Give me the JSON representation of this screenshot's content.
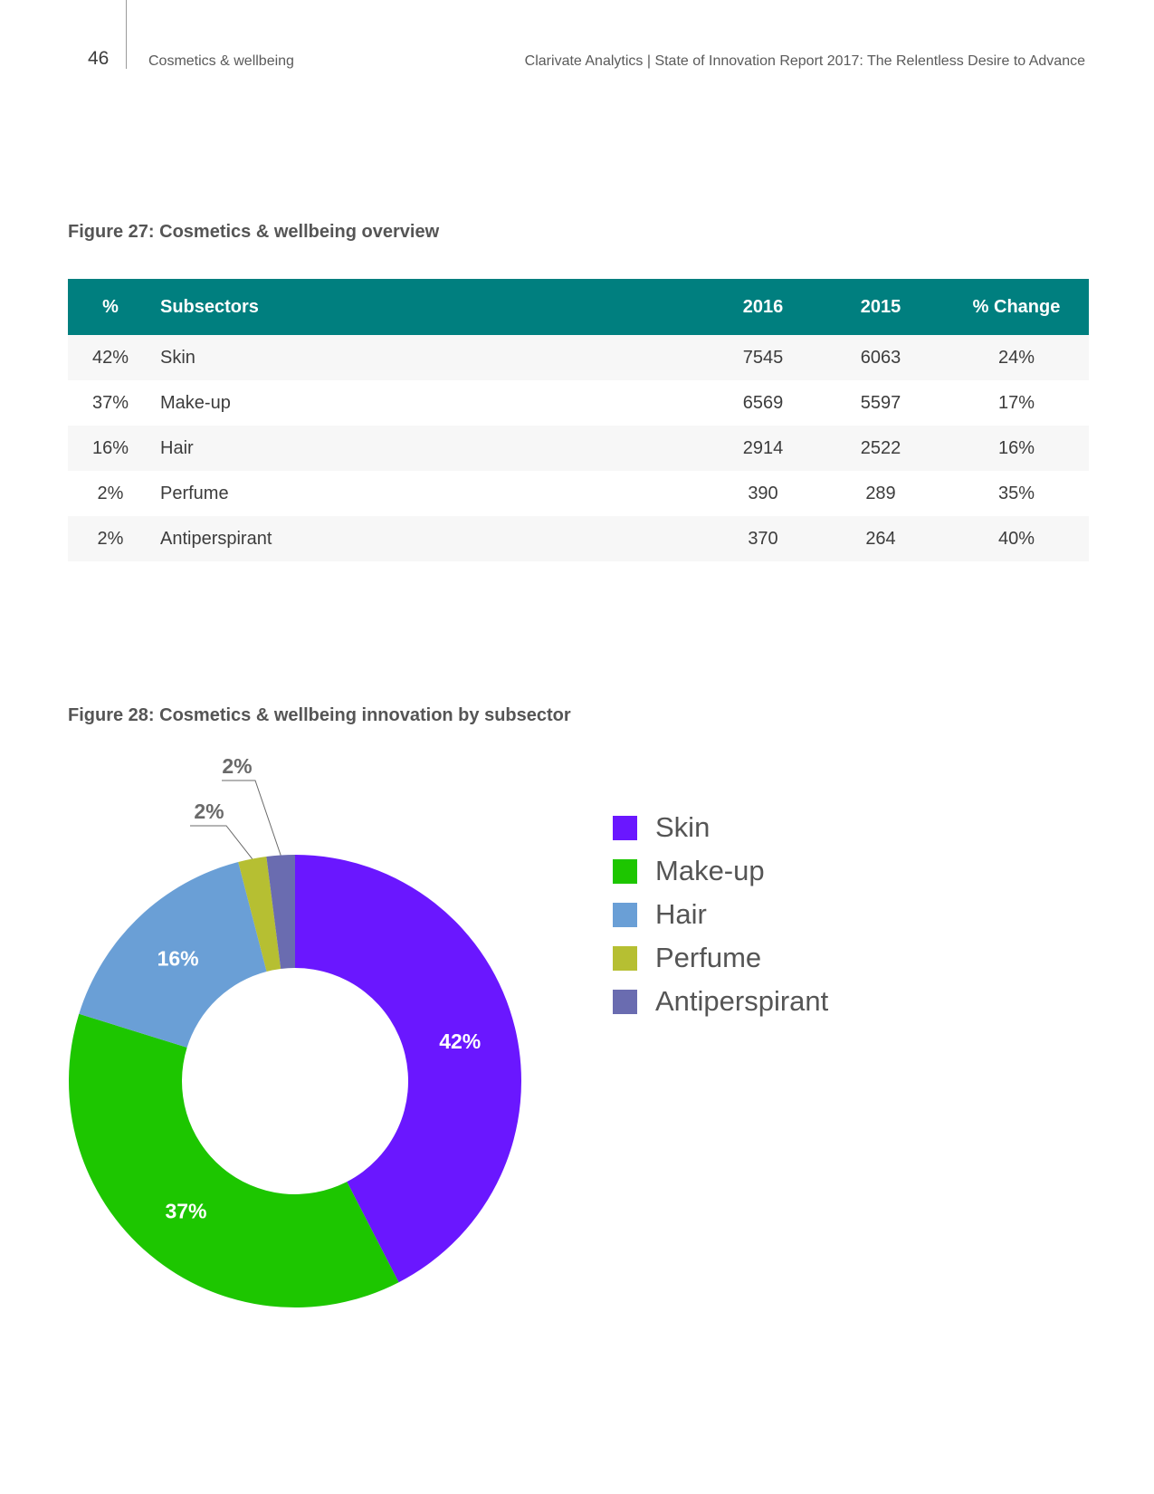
{
  "header": {
    "page_number": "46",
    "section": "Cosmetics & wellbeing",
    "report_title": "Clarivate Analytics | State of Innovation Report 2017: The Relentless Desire to Advance"
  },
  "figure27": {
    "title": "Figure 27: Cosmetics & wellbeing overview",
    "columns": [
      "%",
      "Subsectors",
      "2016",
      "2015",
      "% Change"
    ],
    "rows": [
      [
        "42%",
        "Skin",
        "7545",
        "6063",
        "24%"
      ],
      [
        "37%",
        "Make-up",
        "6569",
        "5597",
        "17%"
      ],
      [
        "16%",
        "Hair",
        "2914",
        "2522",
        "16%"
      ],
      [
        "2%",
        "Perfume",
        "390",
        "289",
        "35%"
      ],
      [
        "2%",
        "Antiperspirant",
        "370",
        "264",
        "40%"
      ]
    ]
  },
  "figure28": {
    "title": "Figure 28: Cosmetics & wellbeing innovation by subsector"
  },
  "chart_data": {
    "type": "pie",
    "donut": true,
    "title": "Figure 28: Cosmetics & wellbeing innovation by subsector",
    "categories": [
      "Skin",
      "Make-up",
      "Hair",
      "Perfume",
      "Antiperspirant"
    ],
    "values": [
      42,
      37,
      16,
      2,
      2
    ],
    "data_labels": [
      "42%",
      "37%",
      "16%",
      "2%",
      "2%"
    ],
    "colors": [
      "#6a17ff",
      "#1dc600",
      "#6a9fd6",
      "#b6bf32",
      "#6a6cb0"
    ],
    "legend_position": "right"
  }
}
